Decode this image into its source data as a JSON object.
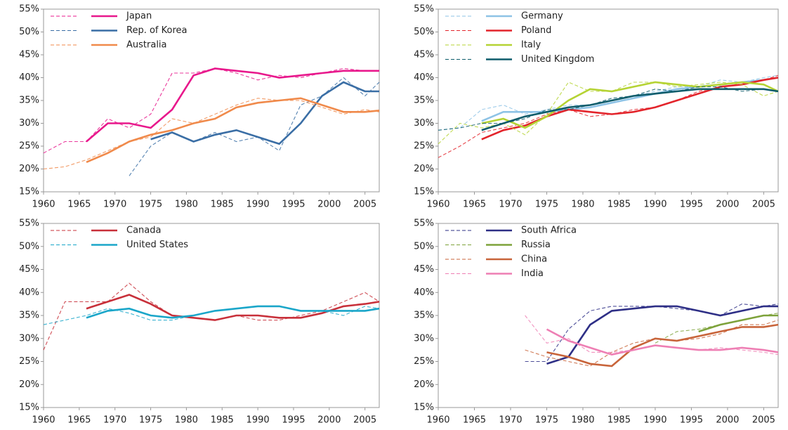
{
  "chart_data": [
    {
      "type": "line",
      "legend": "upper left",
      "xlim": [
        1960,
        2007
      ],
      "ylim": [
        15,
        55
      ],
      "xticks": [
        1960,
        1965,
        1970,
        1975,
        1980,
        1985,
        1990,
        1995,
        2000,
        2005
      ],
      "yticks": [
        {
          "value": 15,
          "label": "15%"
        },
        {
          "value": 20,
          "label": "20%"
        },
        {
          "value": 25,
          "label": "25%"
        },
        {
          "value": 30,
          "label": "30%"
        },
        {
          "value": 35,
          "label": "35%"
        },
        {
          "value": 40,
          "label": "40%"
        },
        {
          "value": 45,
          "label": "45%"
        },
        {
          "value": 50,
          "label": "50%"
        },
        {
          "value": 55,
          "label": "55%"
        }
      ],
      "x": [
        1960,
        1963,
        1966,
        1969,
        1972,
        1975,
        1978,
        1981,
        1984,
        1987,
        1990,
        1993,
        1996,
        1999,
        2002,
        2005,
        2007
      ],
      "series": [
        {
          "name": "Japan",
          "color": "#e8188c",
          "values": [
            23.5,
            26,
            26,
            31,
            29,
            32,
            41,
            41,
            42,
            41,
            39.5,
            40.5,
            40,
            41,
            42,
            41.5,
            41.5
          ],
          "trend": [
            null,
            null,
            26,
            30,
            30,
            29,
            33,
            40.5,
            42,
            41.5,
            41,
            40,
            40.5,
            41,
            41.5,
            41.5,
            41.5
          ]
        },
        {
          "name": "Rep. of Korea",
          "color": "#3a6ea5",
          "values": [
            null,
            null,
            null,
            null,
            18.5,
            25,
            28,
            26,
            28,
            26,
            27,
            24,
            34,
            36,
            40,
            36,
            39
          ],
          "trend": [
            null,
            null,
            null,
            null,
            null,
            26.5,
            28,
            26,
            27.5,
            28.5,
            27,
            25.5,
            30,
            36,
            39,
            37,
            37
          ]
        },
        {
          "name": "Australia",
          "color": "#f08a4b",
          "values": [
            20,
            20.5,
            22,
            24,
            26,
            27,
            31,
            30,
            32,
            34,
            35.5,
            35,
            35,
            33.5,
            32,
            33,
            32.5
          ],
          "trend": [
            null,
            null,
            21.5,
            23.5,
            26,
            27.5,
            28.5,
            30,
            31,
            33.5,
            34.5,
            35,
            35.5,
            34,
            32.5,
            32.5,
            32.8
          ]
        }
      ]
    },
    {
      "type": "line",
      "legend": "upper left",
      "xlim": [
        1960,
        2007
      ],
      "ylim": [
        15,
        55
      ],
      "xticks": [
        1960,
        1965,
        1970,
        1975,
        1980,
        1985,
        1990,
        1995,
        2000,
        2005
      ],
      "yticks": [
        {
          "value": 15,
          "label": "15%"
        },
        {
          "value": 20,
          "label": "20%"
        },
        {
          "value": 25,
          "label": "25%"
        },
        {
          "value": 30,
          "label": "30%"
        },
        {
          "value": 35,
          "label": "35%"
        },
        {
          "value": 40,
          "label": "40%"
        },
        {
          "value": 45,
          "label": "45%"
        },
        {
          "value": 50,
          "label": "50%"
        },
        {
          "value": 55,
          "label": "55%"
        }
      ],
      "x": [
        1960,
        1963,
        1966,
        1969,
        1972,
        1975,
        1978,
        1981,
        1984,
        1987,
        1990,
        1993,
        1996,
        1999,
        2002,
        2005,
        2007
      ],
      "series": [
        {
          "name": "Germany",
          "color": "#8ec3e6",
          "values": [
            28.5,
            29,
            33,
            34,
            32,
            33,
            34,
            34,
            35,
            36,
            37,
            38,
            38,
            39.5,
            39,
            40,
            40.5
          ],
          "trend": [
            null,
            null,
            30.5,
            32.5,
            32.5,
            32.5,
            33,
            33.5,
            34.5,
            35.5,
            36.5,
            37.5,
            38,
            38.5,
            39,
            39.5,
            40
          ]
        },
        {
          "name": "Poland",
          "color": "#e3242b",
          "values": [
            22.5,
            25,
            28,
            29,
            30,
            32,
            33,
            31.5,
            32,
            33,
            33.5,
            35,
            37,
            38,
            38.5,
            39.5,
            40.5
          ],
          "trend": [
            null,
            null,
            26.5,
            28.5,
            29.5,
            31.5,
            33,
            32.5,
            32,
            32.5,
            33.5,
            35,
            36.5,
            38,
            38.5,
            39.5,
            40
          ]
        },
        {
          "name": "Italy",
          "color": "#b5d334",
          "values": [
            25.5,
            30,
            29,
            30,
            27.5,
            32,
            39,
            37,
            37,
            39,
            39,
            38,
            38.5,
            39,
            38.5,
            36,
            37
          ],
          "trend": [
            null,
            null,
            30,
            31,
            29,
            31.5,
            35,
            37.5,
            37,
            38,
            39,
            38.5,
            38,
            38.5,
            39,
            38.5,
            37
          ]
        },
        {
          "name": "United Kingdom",
          "color": "#0e5c6b",
          "values": [
            28.5,
            29,
            30,
            30,
            31,
            33,
            33,
            34,
            35.5,
            36,
            37.5,
            37,
            38,
            38,
            37,
            37.5,
            37
          ],
          "trend": [
            null,
            null,
            28.5,
            30,
            31.5,
            32.5,
            33.5,
            34,
            35,
            36,
            36.5,
            37,
            37.5,
            37.5,
            37.5,
            37.5,
            37
          ]
        }
      ]
    },
    {
      "type": "line",
      "legend": "upper left",
      "xlim": [
        1960,
        2007
      ],
      "ylim": [
        15,
        55
      ],
      "xticks": [
        1960,
        1965,
        1970,
        1975,
        1980,
        1985,
        1990,
        1995,
        2000,
        2005
      ],
      "yticks": [
        {
          "value": 15,
          "label": "15%"
        },
        {
          "value": 20,
          "label": "20%"
        },
        {
          "value": 25,
          "label": "25%"
        },
        {
          "value": 30,
          "label": "30%"
        },
        {
          "value": 35,
          "label": "35%"
        },
        {
          "value": 40,
          "label": "40%"
        },
        {
          "value": 45,
          "label": "45%"
        },
        {
          "value": 50,
          "label": "50%"
        },
        {
          "value": 55,
          "label": "55%"
        }
      ],
      "x": [
        1960,
        1963,
        1966,
        1969,
        1972,
        1975,
        1978,
        1981,
        1984,
        1987,
        1990,
        1993,
        1996,
        1999,
        2002,
        2005,
        2007
      ],
      "series": [
        {
          "name": "Canada",
          "color": "#c8303a",
          "values": [
            27.5,
            38,
            38,
            38,
            42,
            38,
            35,
            34.5,
            34,
            35,
            34,
            34,
            35,
            36,
            38,
            40,
            38
          ],
          "trend": [
            null,
            null,
            36.5,
            38,
            39.5,
            37.5,
            35,
            34.5,
            34,
            35,
            35,
            34.5,
            34.5,
            35.5,
            37,
            37.5,
            38
          ]
        },
        {
          "name": "United States",
          "color": "#1aa6c9",
          "values": [
            33,
            34,
            35,
            36.5,
            35.5,
            34,
            34,
            35,
            36,
            36.5,
            37,
            37,
            36,
            36,
            35,
            37,
            36.5
          ],
          "trend": [
            null,
            null,
            34.5,
            36,
            36.5,
            35,
            34.5,
            35,
            36,
            36.5,
            37,
            37,
            36,
            36,
            36,
            36,
            36.5
          ]
        }
      ]
    },
    {
      "type": "line",
      "legend": "upper left",
      "xlim": [
        1960,
        2007
      ],
      "ylim": [
        15,
        55
      ],
      "xticks": [
        1960,
        1965,
        1970,
        1975,
        1980,
        1985,
        1990,
        1995,
        2000,
        2005
      ],
      "yticks": [
        {
          "value": 15,
          "label": "15%"
        },
        {
          "value": 20,
          "label": "20%"
        },
        {
          "value": 25,
          "label": "25%"
        },
        {
          "value": 30,
          "label": "30%"
        },
        {
          "value": 35,
          "label": "35%"
        },
        {
          "value": 40,
          "label": "40%"
        },
        {
          "value": 45,
          "label": "45%"
        },
        {
          "value": 50,
          "label": "50%"
        },
        {
          "value": 55,
          "label": "55%"
        }
      ],
      "x": [
        1960,
        1963,
        1966,
        1969,
        1972,
        1975,
        1978,
        1981,
        1984,
        1987,
        1990,
        1993,
        1996,
        1999,
        2002,
        2005,
        2007
      ],
      "series": [
        {
          "name": "South Africa",
          "color": "#2e2f86",
          "values": [
            null,
            null,
            null,
            null,
            25,
            25,
            32,
            36,
            37,
            37,
            37,
            36.5,
            36,
            35,
            37.5,
            37,
            37.5
          ],
          "trend": [
            null,
            null,
            null,
            null,
            null,
            24.5,
            26,
            33,
            36,
            36.5,
            37,
            37,
            36,
            35,
            36,
            37,
            37
          ]
        },
        {
          "name": "Russia",
          "color": "#7da23a",
          "values": [
            null,
            null,
            null,
            null,
            null,
            null,
            null,
            null,
            null,
            null,
            29,
            31.5,
            32,
            33,
            34,
            35,
            35.5
          ],
          "trend": [
            null,
            null,
            null,
            null,
            null,
            null,
            null,
            null,
            null,
            null,
            null,
            null,
            31.5,
            33,
            34,
            35,
            35
          ]
        },
        {
          "name": "China",
          "color": "#c8643a",
          "values": [
            null,
            null,
            null,
            null,
            27.5,
            26,
            25,
            24,
            27,
            29,
            30,
            29.5,
            30,
            31,
            33,
            33,
            34
          ],
          "trend": [
            null,
            null,
            null,
            null,
            null,
            27,
            26,
            24.5,
            24,
            28,
            30,
            29.5,
            30.5,
            31.5,
            32.5,
            32.5,
            33
          ]
        },
        {
          "name": "India",
          "color": "#ee7fb4",
          "values": [
            null,
            null,
            null,
            null,
            35,
            29,
            30,
            27,
            27,
            27.5,
            28.5,
            28,
            27.5,
            28,
            27.5,
            27,
            26.5
          ],
          "trend": [
            null,
            null,
            null,
            null,
            null,
            32,
            29.5,
            28,
            26.5,
            27.5,
            28.5,
            28,
            27.5,
            27.5,
            28,
            27.5,
            27
          ]
        }
      ]
    }
  ]
}
